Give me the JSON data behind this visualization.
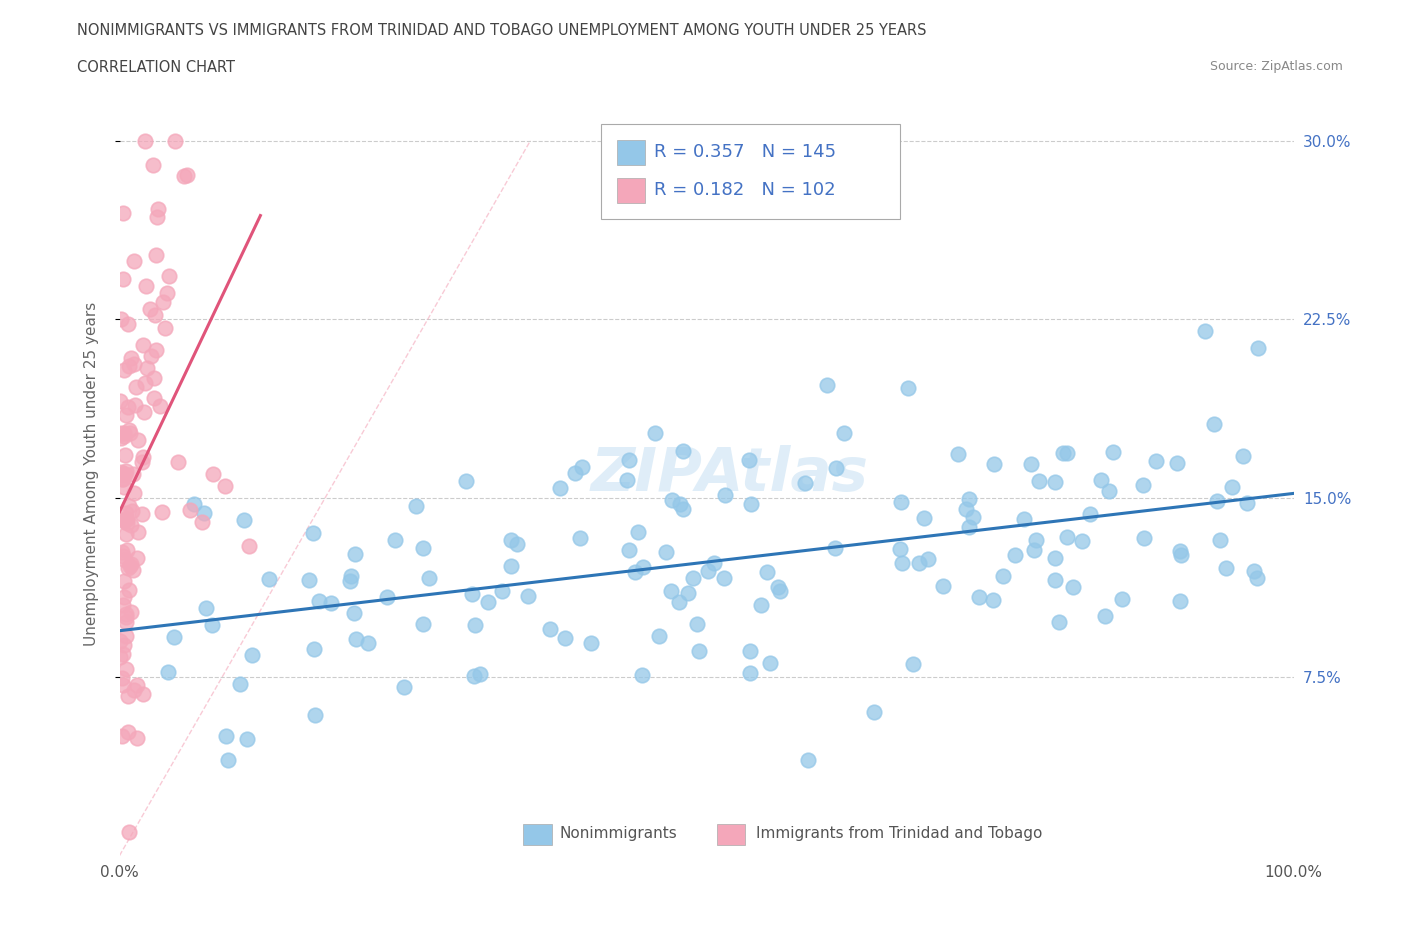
{
  "title_line1": "NONIMMIGRANTS VS IMMIGRANTS FROM TRINIDAD AND TOBAGO UNEMPLOYMENT AMONG YOUTH UNDER 25 YEARS",
  "title_line2": "CORRELATION CHART",
  "source_text": "Source: ZipAtlas.com",
  "ylabel": "Unemployment Among Youth under 25 years",
  "xlim": [
    0.0,
    1.0
  ],
  "ylim": [
    0.0,
    0.32
  ],
  "ytick_labels": [
    "7.5%",
    "15.0%",
    "22.5%",
    "30.0%"
  ],
  "ytick_values": [
    0.075,
    0.15,
    0.225,
    0.3
  ],
  "legend_label1": "Nonimmigrants",
  "legend_label2": "Immigrants from Trinidad and Tobago",
  "R1": 0.357,
  "N1": 145,
  "R2": 0.182,
  "N2": 102,
  "blue_color": "#94C7E8",
  "pink_color": "#F4A7BA",
  "trend_blue": "#2E75B6",
  "trend_pink": "#E0547A",
  "diagonal_color": "#F4A7BA",
  "watermark": "ZIPAtlas",
  "background_color": "#FFFFFF",
  "grid_color": "#CCCCCC"
}
